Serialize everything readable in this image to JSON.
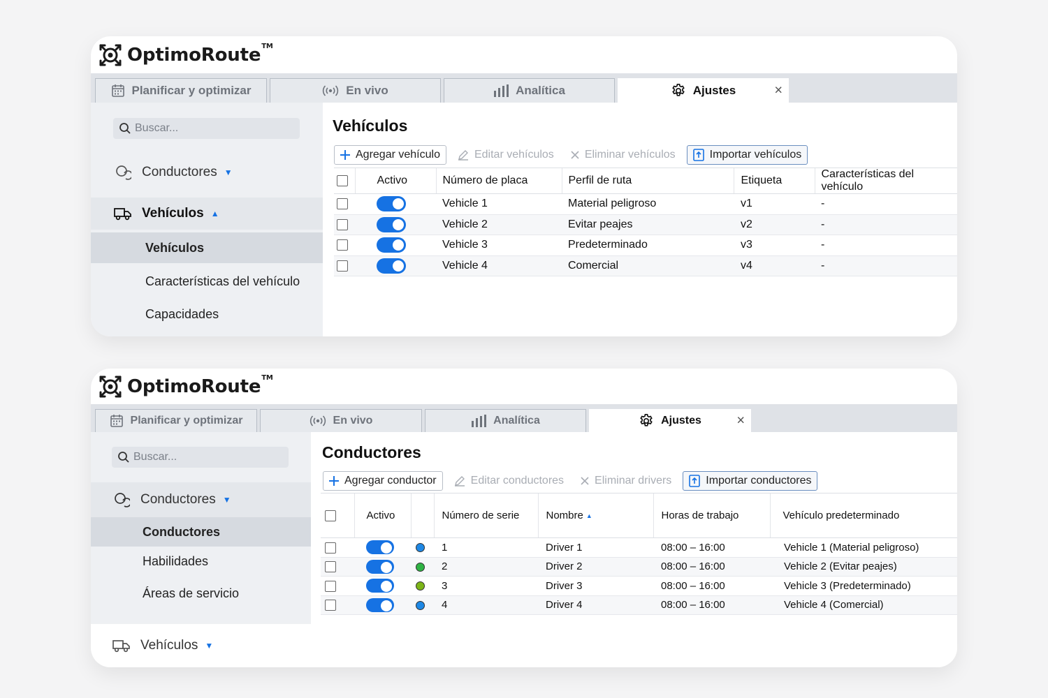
{
  "brand": {
    "name": "OptimoRoute",
    "tm": "TM"
  },
  "colors": {
    "accent": "#1672e3",
    "sidebar_bg": "#eef0f3",
    "tabbar_bg": "#dfe2e7"
  },
  "panel_vehicles": {
    "tabs": [
      {
        "label": "Planificar y optimizar",
        "icon": "calendar-icon"
      },
      {
        "label": "En vivo",
        "icon": "live-signal-icon"
      },
      {
        "label": "Analítica",
        "icon": "bar-chart-icon"
      },
      {
        "label": "Ajustes",
        "icon": "gear-icon",
        "active": true
      }
    ],
    "close_glyph": "×",
    "search_placeholder": "Buscar...",
    "sidebar": {
      "drivers_group": "Conductores",
      "vehicles_group": "Vehículos",
      "items": [
        "Vehículos",
        "Características del vehículo",
        "Capacidades"
      ]
    },
    "title": "Vehículos",
    "toolbar": {
      "add": "Agregar vehículo",
      "edit": "Editar vehículos",
      "delete": "Eliminar vehículos",
      "import": "Importar vehículos"
    },
    "columns": [
      "Activo",
      "Número de placa",
      "Perfil de ruta",
      "Etiqueta",
      "Características del vehículo"
    ],
    "rows": [
      {
        "active": true,
        "plate": "Vehicle 1",
        "profile": "Material peligroso",
        "tag": "v1",
        "features": "-"
      },
      {
        "active": true,
        "plate": "Vehicle 2",
        "profile": "Evitar peajes",
        "tag": "v2",
        "features": "-"
      },
      {
        "active": true,
        "plate": "Vehicle 3",
        "profile": "Predeterminado",
        "tag": "v3",
        "features": "-"
      },
      {
        "active": true,
        "plate": "Vehicle 4",
        "profile": "Comercial",
        "tag": "v4",
        "features": "-"
      }
    ]
  },
  "panel_drivers": {
    "tabs": [
      {
        "label": "Planificar y optimizar",
        "icon": "calendar-icon"
      },
      {
        "label": "En vivo",
        "icon": "live-signal-icon"
      },
      {
        "label": "Analítica",
        "icon": "bar-chart-icon"
      },
      {
        "label": "Ajustes",
        "icon": "gear-icon",
        "active": true
      }
    ],
    "close_glyph": "×",
    "search_placeholder": "Buscar...",
    "sidebar": {
      "drivers_group": "Conductores",
      "items": [
        "Conductores",
        "Habilidades",
        "Áreas de servicio"
      ],
      "vehicles_group": "Vehículos"
    },
    "title": "Conductores",
    "toolbar": {
      "add": "Agregar conductor",
      "edit": "Editar conductores",
      "delete": "Eliminar drivers",
      "import": "Importar conductores"
    },
    "columns": [
      "Activo",
      "Número de serie",
      "Nombre",
      "Horas de trabajo",
      "Vehículo predeterminado"
    ],
    "rows": [
      {
        "active": true,
        "color": "#1e88e5",
        "serial": "1",
        "name": "Driver 1",
        "hours": "08:00 – 16:00",
        "vehicle": "Vehicle 1 (Material peligroso)"
      },
      {
        "active": true,
        "color": "#2fb344",
        "serial": "2",
        "name": "Driver 2",
        "hours": "08:00 – 16:00",
        "vehicle": "Vehicle 2 (Evitar peajes)"
      },
      {
        "active": true,
        "color": "#7cb518",
        "serial": "3",
        "name": "Driver 3",
        "hours": "08:00 – 16:00",
        "vehicle": "Vehicle 3 (Predeterminado)"
      },
      {
        "active": true,
        "color": "#1e88e5",
        "serial": "4",
        "name": "Driver 4",
        "hours": "08:00 – 16:00",
        "vehicle": "Vehicle 4 (Comercial)"
      }
    ]
  }
}
